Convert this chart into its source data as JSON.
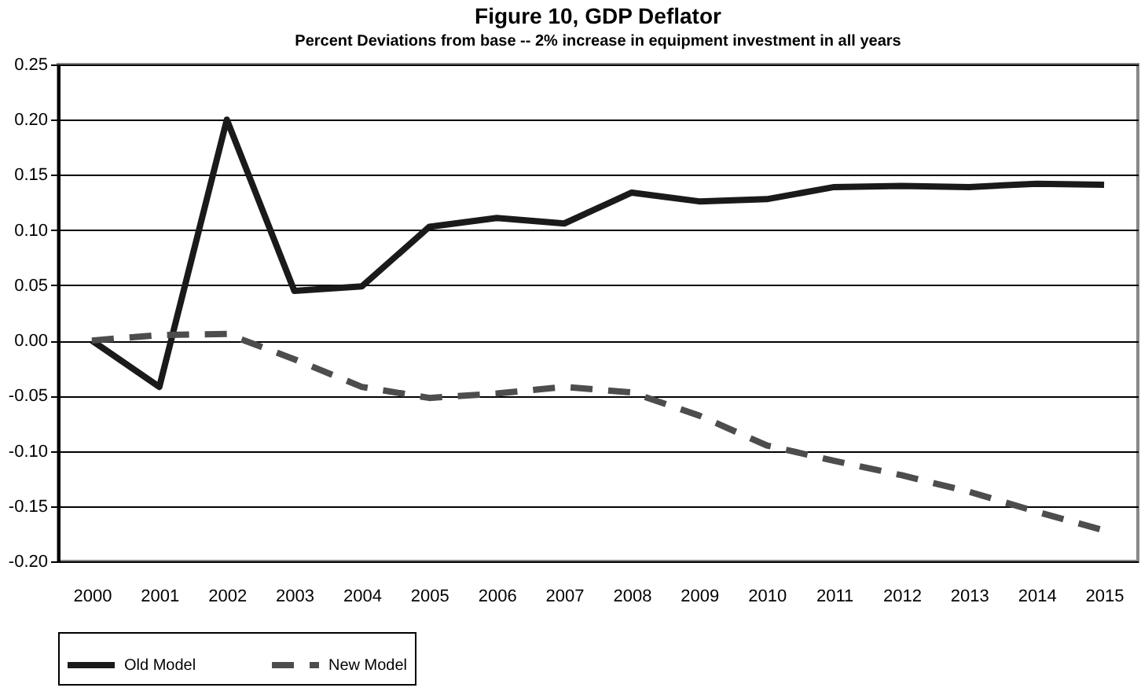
{
  "chart_data": {
    "type": "line",
    "title": "Figure 10, GDP Deflator",
    "subtitle": "Percent Deviations from base -- 2% increase in equipment investment in all years",
    "categories": [
      "2000",
      "2001",
      "2002",
      "2003",
      "2004",
      "2005",
      "2006",
      "2007",
      "2008",
      "2009",
      "2010",
      "2011",
      "2012",
      "2013",
      "2014",
      "2015"
    ],
    "series": [
      {
        "name": "Old Model",
        "color": "#1a1a1a",
        "line_style": "solid",
        "values": [
          0,
          -0.042,
          0.2,
          0.045,
          0.049,
          0.103,
          0.111,
          0.106,
          0.134,
          0.126,
          0.128,
          0.139,
          0.14,
          0.139,
          0.142,
          0.141
        ]
      },
      {
        "name": "New Model",
        "color": "#4d4d4d",
        "line_style": "dashed",
        "values": [
          0,
          0.005,
          0.006,
          -0.017,
          -0.042,
          -0.052,
          -0.048,
          -0.042,
          -0.047,
          -0.068,
          -0.095,
          -0.109,
          -0.122,
          -0.137,
          -0.155,
          -0.172
        ]
      }
    ],
    "ylim": [
      -0.2,
      0.25
    ],
    "yticks": [
      {
        "value": -0.2,
        "label": "-0.20"
      },
      -0.15,
      {
        "value": -0.1,
        "label": "-0.10"
      },
      -0.05,
      {
        "value": 0,
        "label": "0.00"
      },
      0.05,
      {
        "value": 0.1,
        "label": "0.10"
      },
      0.15,
      {
        "value": 0.2,
        "label": "0.20"
      },
      0.25
    ],
    "grid": "y",
    "legend": "bottom",
    "marker": "none"
  }
}
